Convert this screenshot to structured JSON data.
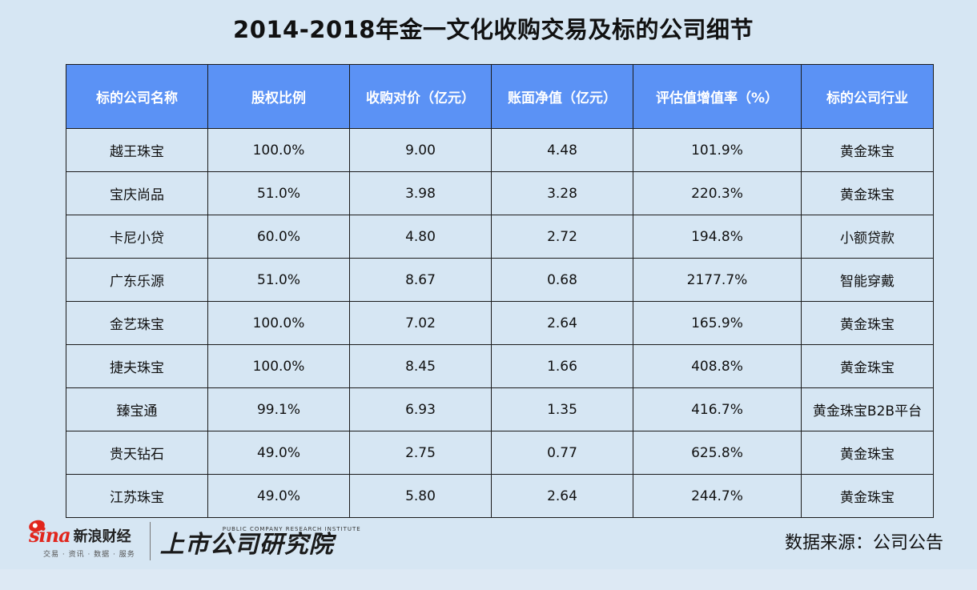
{
  "title": "2014-2018年金一文化收购交易及标的公司细节",
  "table": {
    "headers": [
      "标的公司名称",
      "股权比例",
      "收购对价（亿元）",
      "账面净值（亿元）",
      "评估值增值率（%）",
      "标的公司行业"
    ],
    "rows": [
      [
        "越王珠宝",
        "100.0%",
        "9.00",
        "4.48",
        "101.9%",
        "黄金珠宝"
      ],
      [
        "宝庆尚品",
        "51.0%",
        "3.98",
        "3.28",
        "220.3%",
        "黄金珠宝"
      ],
      [
        "卡尼小贷",
        "60.0%",
        "4.80",
        "2.72",
        "194.8%",
        "小额贷款"
      ],
      [
        "广东乐源",
        "51.0%",
        "8.67",
        "0.68",
        "2177.7%",
        "智能穿戴"
      ],
      [
        "金艺珠宝",
        "100.0%",
        "7.02",
        "2.64",
        "165.9%",
        "黄金珠宝"
      ],
      [
        "捷夫珠宝",
        "100.0%",
        "8.45",
        "1.66",
        "408.8%",
        "黄金珠宝"
      ],
      [
        "臻宝通",
        "99.1%",
        "6.93",
        "1.35",
        "416.7%",
        "黄金珠宝B2B平台"
      ],
      [
        "贵天钻石",
        "49.0%",
        "2.75",
        "0.77",
        "625.8%",
        "黄金珠宝"
      ],
      [
        "江苏珠宝",
        "49.0%",
        "5.80",
        "2.64",
        "244.7%",
        "黄金珠宝"
      ]
    ]
  },
  "footer": {
    "sina_logo": "sina",
    "sina_name": "新浪财经",
    "sina_tagline": "交易 · 资讯 · 数据 · 服务",
    "institute_en": "PUBLIC COMPANY RESEARCH INSTITUTE",
    "institute_cn": "上市公司研究院",
    "source": "数据来源：公司公告"
  },
  "colors": {
    "background": "#d6e6f3",
    "header_bg": "#5b92f5",
    "header_text": "#ffffff",
    "sina_red": "#e1261d"
  }
}
